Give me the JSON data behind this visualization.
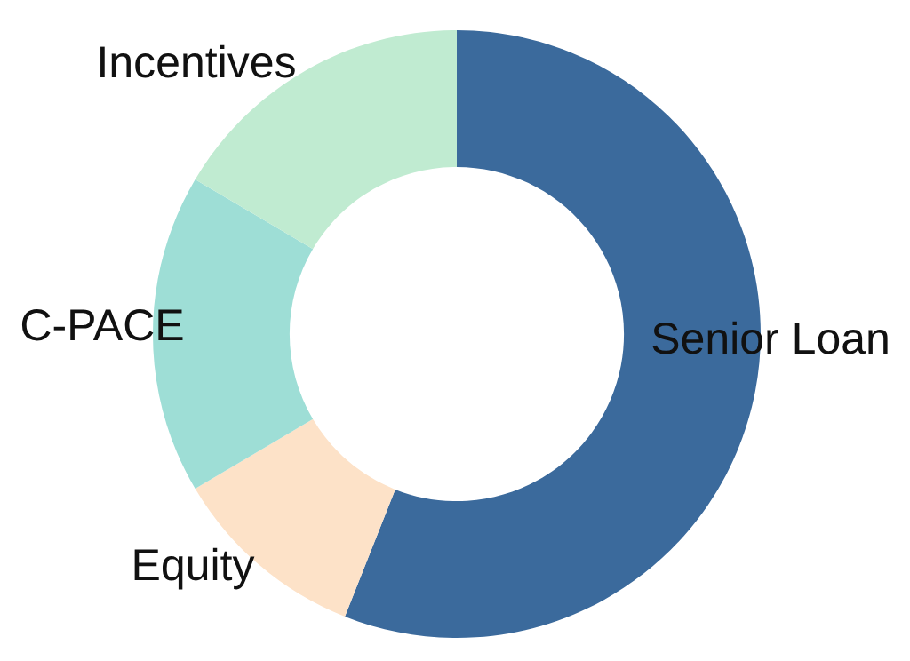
{
  "chart_data": {
    "type": "donut",
    "categories": [
      "Senior Loan",
      "Equity",
      "C-PACE",
      "Incentives"
    ],
    "values": [
      56,
      10.5,
      17,
      16.5
    ],
    "colors": [
      "#3b6a9c",
      "#fde2c8",
      "#9eded6",
      "#c0ebd1"
    ]
  }
}
